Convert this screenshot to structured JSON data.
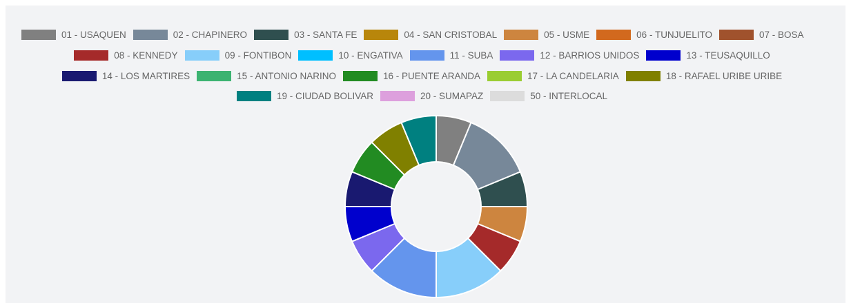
{
  "chart_data": {
    "type": "doughnut",
    "categories": [
      "01 - USAQUEN",
      "02 - CHAPINERO",
      "03 - SANTA FE",
      "04 - SAN CRISTOBAL",
      "05 - USME",
      "06 - TUNJUELITO",
      "07 - BOSA",
      "08 - KENNEDY",
      "09 - FONTIBON",
      "10 - ENGATIVA",
      "11 - SUBA",
      "12 - BARRIOS UNIDOS",
      "13 - TEUSAQUILLO",
      "14 - LOS MARTIRES",
      "15 - ANTONIO NARINO",
      "16 - PUENTE ARANDA",
      "17 - LA CANDELARIA",
      "18 - RAFAEL URIBE URIBE",
      "19 - CIUDAD BOLIVAR",
      "20 - SUMAPAZ",
      "50 - INTERLOCAL"
    ],
    "values": [
      1,
      2,
      1,
      0,
      1,
      0,
      0,
      1,
      2,
      0,
      2,
      1,
      1,
      1,
      0,
      1,
      0,
      1,
      1,
      0,
      0
    ],
    "colors": [
      "#808080",
      "#778899",
      "#2f4f4f",
      "#b8860b",
      "#cd853f",
      "#d2691e",
      "#a0522d",
      "#a52a2a",
      "#87cefa",
      "#00bfff",
      "#6495ed",
      "#7b68ee",
      "#0000cd",
      "#191970",
      "#3cb371",
      "#228b22",
      "#9acd32",
      "#808000",
      "#008080",
      "#dda0dd",
      "#dcdcdc"
    ]
  }
}
